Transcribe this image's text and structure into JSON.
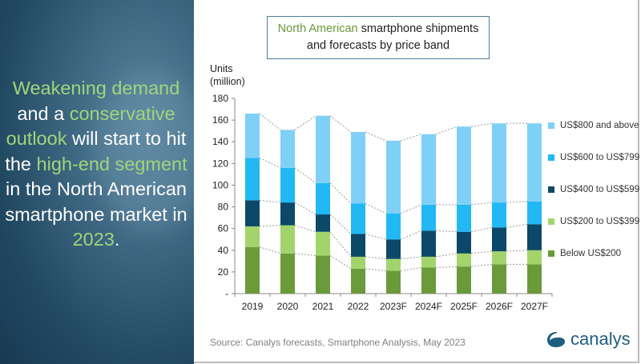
{
  "headline": {
    "parts": [
      {
        "text": "Weakening demand",
        "hl": true
      },
      {
        "text": " and a ",
        "hl": false
      },
      {
        "text": "conservative outlook",
        "hl": true
      },
      {
        "text": " will start to hit the ",
        "hl": false
      },
      {
        "text": "high-end segment",
        "hl": true
      },
      {
        "text": " in the North American smartphone market ",
        "hl": false
      },
      {
        "text": "in ",
        "hl": false
      },
      {
        "text": "2023",
        "hl": true
      },
      {
        "text": ".",
        "hl": false
      }
    ]
  },
  "colors": {
    "accent": "#9fd67a",
    "brand": "#1d5f80"
  },
  "source": "Source:  Canalys forecasts, Smartphone Analysis, May 2023",
  "logo_text": "canalys",
  "chart_data": {
    "type": "bar",
    "stacked": true,
    "title_highlight": "North American",
    "title_rest": " smartphone shipments and forecasts by price band",
    "ylabel_line1": "Units",
    "ylabel_line2": "(million)",
    "xlabel": "",
    "ylim": [
      0,
      180
    ],
    "yticks": [
      0,
      20,
      40,
      60,
      80,
      100,
      120,
      140,
      160,
      180
    ],
    "ytick_labels": [
      "-",
      "20",
      "40",
      "60",
      "80",
      "100",
      "120",
      "140",
      "160",
      "180"
    ],
    "categories": [
      "2019",
      "2020",
      "2021",
      "2022",
      "2023F",
      "2024F",
      "2025F",
      "2026F",
      "2027F"
    ],
    "series": [
      {
        "name": "Below US$200",
        "color": "#6b9a3a",
        "values": [
          43,
          37,
          35,
          23,
          21,
          24,
          25,
          27,
          27
        ]
      },
      {
        "name": "US$200 to US$399",
        "color": "#a3d46c",
        "values": [
          19,
          26,
          22,
          11,
          11,
          10,
          12,
          12,
          13
        ]
      },
      {
        "name": "US$400 to US$599",
        "color": "#0c4867",
        "values": [
          24,
          21,
          16,
          21,
          18,
          24,
          20,
          22,
          24
        ]
      },
      {
        "name": "US$600 to US$799",
        "color": "#22b8f4",
        "values": [
          39,
          32,
          29,
          28,
          24,
          24,
          25,
          23,
          21
        ]
      },
      {
        "name": "US$800 and above",
        "color": "#7fd0f7",
        "values": [
          41,
          35,
          62,
          66,
          67,
          65,
          72,
          73,
          72
        ]
      }
    ],
    "legend_position": "right",
    "connector_lines": true,
    "grid": false
  }
}
